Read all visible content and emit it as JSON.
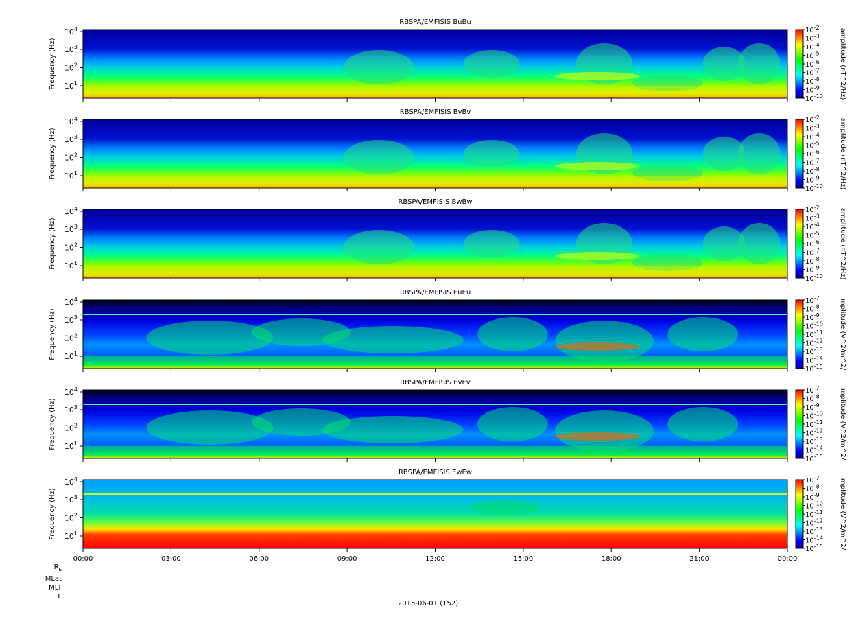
{
  "chart_data": {
    "type": "heatmap",
    "scale_colors": [
      "#00008b",
      "#0000ff",
      "#0080ff",
      "#00ffff",
      "#00ff80",
      "#00ff00",
      "#80ff00",
      "#ffff00",
      "#ff8000",
      "#ff0000"
    ],
    "x_ticks": [
      "00:00",
      "03:00",
      "06:00",
      "09:00",
      "12:00",
      "15:00",
      "18:00",
      "21:00",
      "00:00"
    ],
    "ylabel": "Frequency (Hz)",
    "y_scale": "log",
    "y_ticks": [
      {
        "base": "10",
        "exp": "1"
      },
      {
        "base": "10",
        "exp": "2"
      },
      {
        "base": "10",
        "exp": "3"
      },
      {
        "base": "10",
        "exp": "4"
      }
    ],
    "panels": [
      {
        "title": "RBSPA/EMFISIS  BuBu",
        "colorbar_label": "amplitude (nT^2/Hz)",
        "colorbar_ticks": [
          "-2",
          "-3",
          "-4",
          "-5",
          "-6",
          "-7",
          "-8",
          "-9",
          "-10"
        ],
        "colorbar_range": [
          "1e-10",
          "1e-2"
        ]
      },
      {
        "title": "RBSPA/EMFISIS  BvBv",
        "colorbar_label": "amplitude (nT^2/Hz)",
        "colorbar_ticks": [
          "-2",
          "-3",
          "-4",
          "-5",
          "-6",
          "-7",
          "-8",
          "-9",
          "-10"
        ],
        "colorbar_range": [
          "1e-10",
          "1e-2"
        ]
      },
      {
        "title": "RBSPA/EMFISIS  BwBw",
        "colorbar_label": "amplitude (nT^2/Hz)",
        "colorbar_ticks": [
          "-2",
          "-3",
          "-4",
          "-5",
          "-6",
          "-7",
          "-8",
          "-9",
          "-10"
        ],
        "colorbar_range": [
          "1e-10",
          "1e-2"
        ]
      },
      {
        "title": "RBSPA/EMFISIS  EuEu",
        "colorbar_label": "mplitude (V^2/m^2/",
        "colorbar_ticks": [
          "-7",
          "-8",
          "-9",
          "-10",
          "-11",
          "-12",
          "-13",
          "-14",
          "-15"
        ],
        "colorbar_range": [
          "1e-15",
          "1e-7"
        ]
      },
      {
        "title": "RBSPA/EMFISIS  EvEv",
        "colorbar_label": "mplitude (V^2/m^2/",
        "colorbar_ticks": [
          "-7",
          "-8",
          "-9",
          "-10",
          "-11",
          "-12",
          "-13",
          "-14",
          "-15"
        ],
        "colorbar_range": [
          "1e-15",
          "1e-7"
        ]
      },
      {
        "title": "RBSPA/EMFISIS  EwEw",
        "colorbar_label": "mplitude (V^2/m^2/",
        "colorbar_ticks": [
          "-7",
          "-8",
          "-9",
          "-10",
          "-11",
          "-12",
          "-13",
          "-14",
          "-15"
        ],
        "colorbar_range": [
          "1e-15",
          "1e-7"
        ]
      }
    ]
  },
  "ephemeris_labels": [
    "R",
    "MLat",
    "MLT",
    "L"
  ],
  "ephemeris_r_subscript": "E",
  "date_label": "2015-06-01 (152)"
}
